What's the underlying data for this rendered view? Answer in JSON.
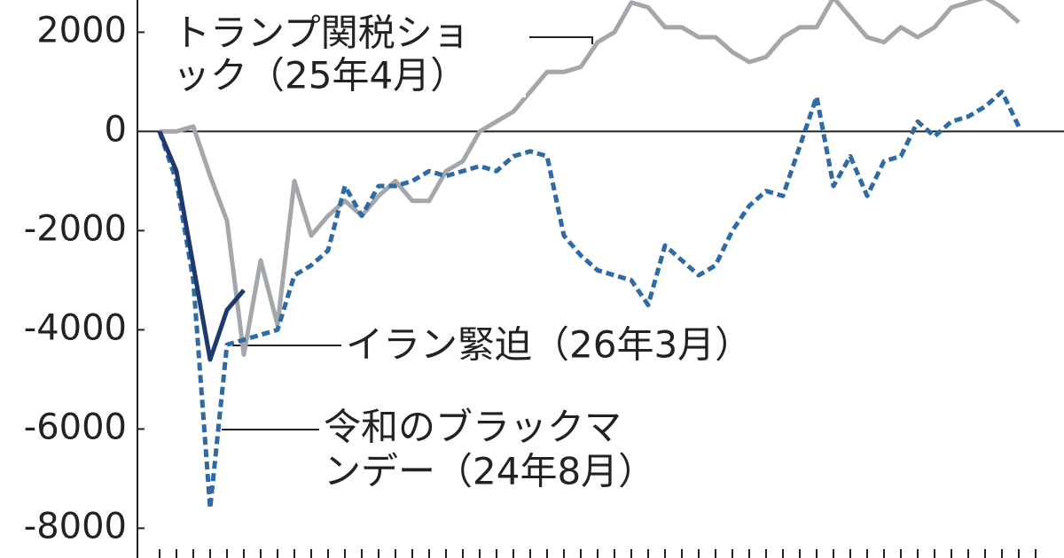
{
  "chart_data": {
    "type": "line",
    "categories": [
      null,
      null,
      null,
      null,
      null,
      null,
      null,
      null,
      null,
      null,
      null,
      null,
      null,
      null,
      null,
      null,
      null,
      null,
      null,
      null,
      null,
      null,
      null,
      null,
      null,
      null,
      null,
      null,
      null,
      null,
      null,
      null,
      null,
      null,
      null,
      null,
      null,
      null,
      null,
      null,
      null,
      null,
      null,
      null,
      null,
      null,
      null,
      null,
      null,
      null,
      null,
      null,
      null
    ],
    "ylim": [
      -8600,
      2650
    ],
    "yticks": [
      2000,
      0,
      -2000,
      -4000,
      -6000,
      -8000
    ],
    "series": [
      {
        "name": "トランプ関税ショック（25年4月）",
        "color": "#a3a6aa",
        "dash": false,
        "values": [
          0,
          0,
          100,
          -900,
          -1800,
          -4500,
          -2600,
          -3900,
          -1000,
          -2100,
          -1700,
          -1400,
          -1700,
          -1300,
          -1000,
          -1400,
          -1400,
          -800,
          -600,
          0,
          200,
          400,
          800,
          1200,
          1200,
          1300,
          1800,
          2000,
          2600,
          2500,
          2100,
          2100,
          1900,
          1900,
          1600,
          1400,
          1500,
          1900,
          2100,
          2100,
          2700,
          2300,
          1900,
          1800,
          2100,
          1900,
          2100,
          2500,
          2600,
          2700,
          2500,
          2200,
          null
        ]
      },
      {
        "name": "令和のブラックマンデー（24年8月）",
        "color": "#2e6aa4",
        "dash": true,
        "values": [
          0,
          -1000,
          -3000,
          -7600,
          -4300,
          -4200,
          -4100,
          -4000,
          -2900,
          -2700,
          -2400,
          -1100,
          -1700,
          -1100,
          -1100,
          -1000,
          -800,
          -900,
          -800,
          -700,
          -800,
          -500,
          -400,
          -500,
          -2100,
          -2500,
          -2800,
          -2900,
          -3000,
          -3500,
          -2300,
          -2600,
          -2900,
          -2700,
          -2000,
          -1500,
          -1200,
          -1300,
          -300,
          700,
          -1100,
          -500,
          -1300,
          -600,
          -500,
          200,
          -100,
          200,
          300,
          500,
          800,
          100,
          null
        ]
      },
      {
        "name": "イラン緊迫（26年3月）",
        "color": "#1c3a6c",
        "dash": false,
        "values": [
          0,
          -800,
          -2700,
          -4600,
          -3600,
          -3200,
          null,
          null,
          null,
          null,
          null,
          null,
          null,
          null,
          null,
          null,
          null,
          null,
          null,
          null,
          null,
          null,
          null,
          null,
          null,
          null,
          null,
          null,
          null,
          null,
          null,
          null,
          null,
          null,
          null,
          null,
          null,
          null,
          null,
          null,
          null,
          null,
          null,
          null,
          null,
          null,
          null,
          null,
          null,
          null,
          null,
          null,
          null
        ]
      }
    ],
    "annotations": [
      {
        "lines": [
          "トランプ関税ショ",
          "ック（25年4月）"
        ]
      },
      {
        "lines": [
          "イラン緊迫（26年3月）"
        ]
      },
      {
        "lines": [
          "令和のブラックマ",
          "ンデー（24年8月）"
        ]
      }
    ]
  }
}
